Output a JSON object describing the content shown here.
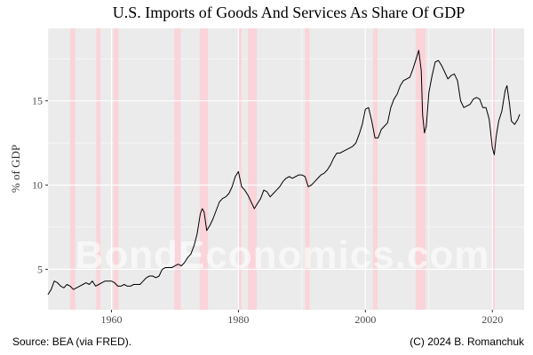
{
  "chart_data": {
    "type": "line",
    "title": "U.S. Imports of Goods And Services As Share Of GDP",
    "ylabel": "% of GDP",
    "xlabel": "",
    "xlim": [
      1950,
      2025
    ],
    "ylim": [
      2.6,
      19.3
    ],
    "x_ticks": [
      1960,
      1980,
      2000,
      2020
    ],
    "y_ticks": [
      5,
      10,
      15
    ],
    "grid": true,
    "recessions": [
      [
        1953.5,
        1954.3
      ],
      [
        1957.6,
        1958.3
      ],
      [
        1960.3,
        1961.1
      ],
      [
        1969.9,
        1970.9
      ],
      [
        1973.9,
        1975.2
      ],
      [
        1980.0,
        1980.5
      ],
      [
        1981.5,
        1982.9
      ],
      [
        1990.5,
        1991.2
      ],
      [
        2001.2,
        2001.9
      ],
      [
        2007.9,
        2009.5
      ],
      [
        2020.1,
        2020.4
      ]
    ],
    "series": [
      {
        "color": "#000000",
        "x": [
          1950,
          1950.5,
          1951,
          1951.5,
          1952,
          1952.5,
          1953,
          1953.5,
          1954,
          1954.5,
          1955,
          1955.5,
          1956,
          1956.5,
          1957,
          1957.5,
          1958,
          1958.5,
          1959,
          1959.5,
          1960,
          1960.5,
          1961,
          1961.5,
          1962,
          1962.5,
          1963,
          1963.5,
          1964,
          1964.5,
          1965,
          1965.5,
          1966,
          1966.5,
          1967,
          1967.5,
          1968,
          1968.5,
          1969,
          1969.5,
          1970,
          1970.5,
          1971,
          1971.5,
          1972,
          1972.5,
          1973,
          1973.5,
          1974,
          1974.3,
          1974.6,
          1975,
          1975.5,
          1976,
          1976.5,
          1977,
          1977.5,
          1978,
          1978.5,
          1979,
          1979.5,
          1980,
          1980.5,
          1981,
          1981.5,
          1982,
          1982.5,
          1983,
          1983.5,
          1984,
          1984.5,
          1985,
          1985.5,
          1986,
          1986.5,
          1987,
          1987.5,
          1988,
          1988.5,
          1989,
          1989.5,
          1990,
          1990.5,
          1991,
          1991.5,
          1992,
          1992.5,
          1993,
          1993.5,
          1994,
          1994.5,
          1995,
          1995.5,
          1996,
          1996.5,
          1997,
          1997.5,
          1998,
          1998.5,
          1999,
          1999.5,
          2000,
          2000.5,
          2001,
          2001.5,
          2002,
          2002.5,
          2003,
          2003.5,
          2004,
          2004.5,
          2005,
          2005.5,
          2006,
          2006.5,
          2007,
          2007.5,
          2008,
          2008.4,
          2008.8,
          2009,
          2009.3,
          2009.6,
          2010,
          2010.5,
          2011,
          2011.5,
          2012,
          2012.5,
          2013,
          2013.5,
          2014,
          2014.5,
          2015,
          2015.5,
          2016,
          2016.5,
          2017,
          2017.5,
          2018,
          2018.5,
          2019,
          2019.5,
          2020,
          2020.3,
          2020.6,
          2021,
          2021.5,
          2022,
          2022.3,
          2022.7,
          2023,
          2023.5,
          2024,
          2024.3
        ],
        "values": [
          3.5,
          3.8,
          4.3,
          4.2,
          4.0,
          3.9,
          4.1,
          4.0,
          3.8,
          3.9,
          4.0,
          4.1,
          4.2,
          4.1,
          4.3,
          4.0,
          4.1,
          4.2,
          4.3,
          4.3,
          4.3,
          4.2,
          4.0,
          4.0,
          4.1,
          4.0,
          4.0,
          4.1,
          4.1,
          4.1,
          4.3,
          4.5,
          4.6,
          4.6,
          4.5,
          4.6,
          5.0,
          5.1,
          5.1,
          5.1,
          5.2,
          5.3,
          5.2,
          5.4,
          5.7,
          5.9,
          6.4,
          7.1,
          8.3,
          8.6,
          8.4,
          7.3,
          7.6,
          8.0,
          8.5,
          9.0,
          9.2,
          9.3,
          9.5,
          9.9,
          10.5,
          10.8,
          9.9,
          9.7,
          9.4,
          9.0,
          8.6,
          8.9,
          9.2,
          9.7,
          9.6,
          9.3,
          9.5,
          9.7,
          9.9,
          10.2,
          10.4,
          10.5,
          10.4,
          10.5,
          10.6,
          10.6,
          10.5,
          9.9,
          10.0,
          10.2,
          10.4,
          10.6,
          10.7,
          10.9,
          11.2,
          11.6,
          11.9,
          11.9,
          12.0,
          12.1,
          12.2,
          12.3,
          12.5,
          13.0,
          13.6,
          14.5,
          14.6,
          13.8,
          12.8,
          12.8,
          13.3,
          13.5,
          13.7,
          14.6,
          15.1,
          15.4,
          15.9,
          16.2,
          16.3,
          16.4,
          16.9,
          17.5,
          18.0,
          16.8,
          14.2,
          13.1,
          13.5,
          15.5,
          16.5,
          17.3,
          17.4,
          17.1,
          16.7,
          16.3,
          16.5,
          16.6,
          16.2,
          15.0,
          14.6,
          14.7,
          14.8,
          15.1,
          15.2,
          15.1,
          14.6,
          14.6,
          13.9,
          12.2,
          11.8,
          12.9,
          13.8,
          14.4,
          15.6,
          15.9,
          14.8,
          13.8,
          13.6,
          13.9,
          14.2
        ]
      }
    ]
  },
  "watermark": "BondEconomics.com",
  "footer": {
    "source": "Source: BEA (via FRED).",
    "copyright": "(C) 2024 B. Romanchuk"
  },
  "colors": {
    "panel": "#ebebeb",
    "grid_major": "#ffffff",
    "recession": "#fad4d9",
    "line": "#000000"
  }
}
